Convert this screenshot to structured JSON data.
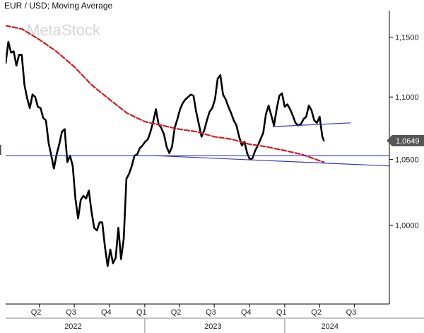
{
  "chart_data": {
    "type": "line",
    "title": "EUR / USD; Moving Average",
    "watermark": "MetaStock",
    "xlabel": "",
    "ylabel": "",
    "x_range": [
      "2022-01-03",
      "2024-09-30"
    ],
    "ylim": [
      0.943,
      1.173
    ],
    "y_scale": "log",
    "y_ticks": [
      {
        "value": 1.15,
        "label": "1,1500"
      },
      {
        "value": 1.1,
        "label": "1,1000"
      },
      {
        "value": 1.05,
        "label": "1,0500"
      },
      {
        "value": 1.0,
        "label": "1,0000"
      }
    ],
    "quarter_ticks": [
      {
        "date": "2022-04-01",
        "label": "Q2"
      },
      {
        "date": "2022-07-01",
        "label": "Q3"
      },
      {
        "date": "2022-10-01",
        "label": "Q4"
      },
      {
        "date": "2023-01-01",
        "label": "Q1"
      },
      {
        "date": "2023-04-01",
        "label": "Q2"
      },
      {
        "date": "2023-07-01",
        "label": "Q3"
      },
      {
        "date": "2023-10-01",
        "label": "Q4"
      },
      {
        "date": "2024-01-01",
        "label": "Q1"
      },
      {
        "date": "2024-04-01",
        "label": "Q2"
      },
      {
        "date": "2024-07-01",
        "label": "Q3"
      }
    ],
    "year_labels": [
      {
        "label": "2022",
        "center": "2022-07-01"
      },
      {
        "label": "2023",
        "center": "2023-07-01"
      },
      {
        "label": "2024",
        "center": "2024-05-01"
      }
    ],
    "year_separators": [
      "2023-01-01",
      "2024-01-01"
    ],
    "last_value": {
      "value": 1.0649,
      "label": "1,0649"
    },
    "series": [
      {
        "type": "line",
        "color": "#000000",
        "style": "solid",
        "points": [
          [
            "2022-01-03",
            1.128
          ],
          [
            "2022-01-10",
            1.146
          ],
          [
            "2022-01-17",
            1.137
          ],
          [
            "2022-01-24",
            1.138
          ],
          [
            "2022-01-31",
            1.126
          ],
          [
            "2022-02-07",
            1.135
          ],
          [
            "2022-02-14",
            1.135
          ],
          [
            "2022-02-21",
            1.11
          ],
          [
            "2022-02-28",
            1.099
          ],
          [
            "2022-03-07",
            1.091
          ],
          [
            "2022-03-14",
            1.102
          ],
          [
            "2022-03-21",
            1.1
          ],
          [
            "2022-03-28",
            1.092
          ],
          [
            "2022-04-04",
            1.091
          ],
          [
            "2022-04-11",
            1.083
          ],
          [
            "2022-04-18",
            1.081
          ],
          [
            "2022-04-25",
            1.063
          ],
          [
            "2022-05-02",
            1.053
          ],
          [
            "2022-05-09",
            1.043
          ],
          [
            "2022-05-16",
            1.054
          ],
          [
            "2022-05-23",
            1.062
          ],
          [
            "2022-05-30",
            1.072
          ],
          [
            "2022-06-06",
            1.074
          ],
          [
            "2022-06-13",
            1.048
          ],
          [
            "2022-06-20",
            1.053
          ],
          [
            "2022-06-27",
            1.045
          ],
          [
            "2022-07-04",
            1.02
          ],
          [
            "2022-07-11",
            1.005
          ],
          [
            "2022-07-18",
            1.019
          ],
          [
            "2022-07-25",
            1.022
          ],
          [
            "2022-08-01",
            1.02
          ],
          [
            "2022-08-08",
            1.026
          ],
          [
            "2022-08-15",
            1.01
          ],
          [
            "2022-08-22",
            0.998
          ],
          [
            "2022-08-29",
            0.996
          ],
          [
            "2022-09-05",
            1.002
          ],
          [
            "2022-09-12",
            1.002
          ],
          [
            "2022-09-19",
            0.984
          ],
          [
            "2022-09-26",
            0.97
          ],
          [
            "2022-10-03",
            0.982
          ],
          [
            "2022-10-10",
            0.972
          ],
          [
            "2022-10-17",
            0.976
          ],
          [
            "2022-10-24",
            0.998
          ],
          [
            "2022-10-31",
            0.975
          ],
          [
            "2022-11-07",
            0.99
          ],
          [
            "2022-11-14",
            1.035
          ],
          [
            "2022-11-21",
            1.039
          ],
          [
            "2022-11-28",
            1.045
          ],
          [
            "2022-12-05",
            1.053
          ],
          [
            "2022-12-12",
            1.054
          ],
          [
            "2022-12-19",
            1.059
          ],
          [
            "2022-12-26",
            1.061
          ],
          [
            "2023-01-02",
            1.064
          ],
          [
            "2023-01-09",
            1.066
          ],
          [
            "2023-01-16",
            1.072
          ],
          [
            "2023-01-23",
            1.08
          ],
          [
            "2023-01-30",
            1.09
          ],
          [
            "2023-02-06",
            1.078
          ],
          [
            "2023-02-13",
            1.075
          ],
          [
            "2023-02-20",
            1.07
          ],
          [
            "2023-02-27",
            1.06
          ],
          [
            "2023-03-06",
            1.055
          ],
          [
            "2023-03-13",
            1.06
          ],
          [
            "2023-03-20",
            1.075
          ],
          [
            "2023-03-27",
            1.082
          ],
          [
            "2023-04-03",
            1.09
          ],
          [
            "2023-04-10",
            1.095
          ],
          [
            "2023-04-17",
            1.098
          ],
          [
            "2023-04-24",
            1.1
          ],
          [
            "2023-05-01",
            1.102
          ],
          [
            "2023-05-08",
            1.101
          ],
          [
            "2023-05-15",
            1.088
          ],
          [
            "2023-05-22",
            1.078
          ],
          [
            "2023-05-29",
            1.068
          ],
          [
            "2023-06-05",
            1.073
          ],
          [
            "2023-06-12",
            1.081
          ],
          [
            "2023-06-19",
            1.088
          ],
          [
            "2023-06-26",
            1.091
          ],
          [
            "2023-07-03",
            1.098
          ],
          [
            "2023-07-10",
            1.115
          ],
          [
            "2023-07-17",
            1.118
          ],
          [
            "2023-07-24",
            1.102
          ],
          [
            "2023-07-31",
            1.098
          ],
          [
            "2023-08-07",
            1.092
          ],
          [
            "2023-08-14",
            1.087
          ],
          [
            "2023-08-21",
            1.081
          ],
          [
            "2023-08-28",
            1.077
          ],
          [
            "2023-09-04",
            1.068
          ],
          [
            "2023-09-11",
            1.061
          ],
          [
            "2023-09-18",
            1.064
          ],
          [
            "2023-09-25",
            1.055
          ],
          [
            "2023-10-02",
            1.05
          ],
          [
            "2023-10-09",
            1.051
          ],
          [
            "2023-10-16",
            1.057
          ],
          [
            "2023-10-23",
            1.061
          ],
          [
            "2023-10-30",
            1.066
          ],
          [
            "2023-11-06",
            1.071
          ],
          [
            "2023-11-13",
            1.086
          ],
          [
            "2023-11-20",
            1.093
          ],
          [
            "2023-11-27",
            1.085
          ],
          [
            "2023-12-04",
            1.077
          ],
          [
            "2023-12-11",
            1.09
          ],
          [
            "2023-12-18",
            1.101
          ],
          [
            "2023-12-25",
            1.103
          ],
          [
            "2024-01-01",
            1.092
          ],
          [
            "2024-01-08",
            1.094
          ],
          [
            "2024-01-15",
            1.09
          ],
          [
            "2024-01-22",
            1.085
          ],
          [
            "2024-01-29",
            1.079
          ],
          [
            "2024-02-05",
            1.077
          ],
          [
            "2024-02-12",
            1.078
          ],
          [
            "2024-02-19",
            1.082
          ],
          [
            "2024-02-26",
            1.084
          ],
          [
            "2024-03-04",
            1.093
          ],
          [
            "2024-03-11",
            1.089
          ],
          [
            "2024-03-18",
            1.081
          ],
          [
            "2024-03-25",
            1.079
          ],
          [
            "2024-04-01",
            1.084
          ],
          [
            "2024-04-08",
            1.068
          ],
          [
            "2024-04-12",
            1.0649
          ]
        ]
      },
      {
        "type": "line",
        "color": "#cc1f1f",
        "style": "dashed",
        "points": [
          [
            "2022-01-03",
            1.16
          ],
          [
            "2022-02-15",
            1.157
          ],
          [
            "2022-04-01",
            1.148
          ],
          [
            "2022-05-15",
            1.138
          ],
          [
            "2022-07-01",
            1.125
          ],
          [
            "2022-08-15",
            1.11
          ],
          [
            "2022-10-01",
            1.098
          ],
          [
            "2022-11-15",
            1.087
          ],
          [
            "2023-01-01",
            1.08
          ],
          [
            "2023-02-15",
            1.077
          ],
          [
            "2023-04-01",
            1.074
          ],
          [
            "2023-05-15",
            1.072
          ],
          [
            "2023-07-01",
            1.068
          ],
          [
            "2023-08-15",
            1.066
          ],
          [
            "2023-10-01",
            1.062
          ],
          [
            "2023-11-15",
            1.06
          ],
          [
            "2024-01-01",
            1.057
          ],
          [
            "2024-02-15",
            1.054
          ],
          [
            "2024-04-01",
            1.049
          ],
          [
            "2024-04-12",
            1.048
          ]
        ]
      },
      {
        "type": "trendline",
        "color": "#3838c8",
        "style": "solid",
        "points": [
          [
            "2022-01-03",
            1.053
          ],
          [
            "2024-09-30",
            1.053
          ]
        ]
      },
      {
        "type": "trendline",
        "color": "#3838c8",
        "style": "solid",
        "points": [
          [
            "2023-01-28",
            1.053
          ],
          [
            "2024-09-30",
            1.045
          ]
        ]
      },
      {
        "type": "trendline",
        "color": "#3838c8",
        "style": "solid",
        "points": [
          [
            "2023-12-01",
            1.076
          ],
          [
            "2024-06-20",
            1.079
          ]
        ]
      }
    ]
  }
}
